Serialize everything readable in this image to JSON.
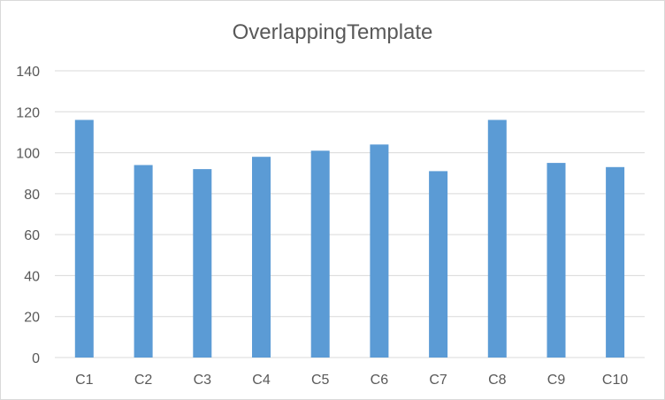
{
  "chart_data": {
    "type": "bar",
    "title": "OverlappingTemplate",
    "xlabel": "",
    "ylabel": "",
    "categories": [
      "C1",
      "C2",
      "C3",
      "C4",
      "C5",
      "C6",
      "C7",
      "C8",
      "C9",
      "C10"
    ],
    "series": [
      {
        "values": [
          116,
          94,
          92,
          98,
          101,
          104,
          91,
          116,
          95,
          93
        ],
        "color": "#5b9bd5"
      }
    ],
    "ylim": [
      0,
      140
    ],
    "yticks": [
      "0",
      "20",
      "40",
      "60",
      "80",
      "100",
      "120",
      "140"
    ],
    "grid": true,
    "legend": "none",
    "colors": {
      "bar": "#5b9bd5",
      "grid": "#d9d9d9",
      "text": "#595959"
    }
  }
}
